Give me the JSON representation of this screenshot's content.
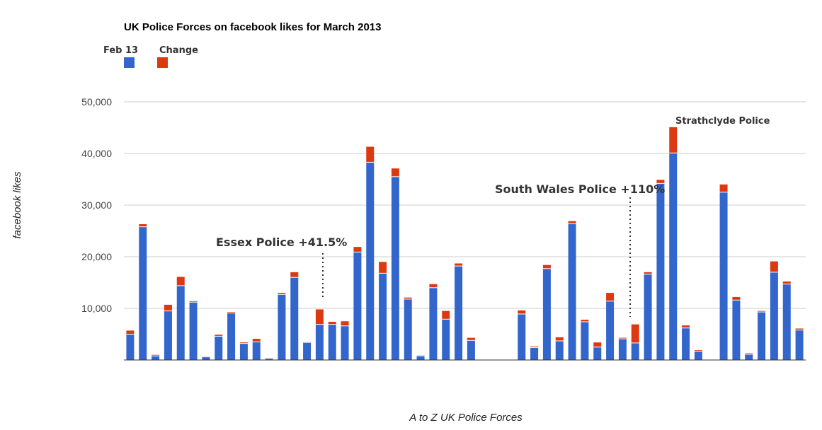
{
  "colors": {
    "base": "#3366cc",
    "change": "#dc3912",
    "grid": "#cccccc",
    "text": "#333333"
  },
  "chart_data": {
    "type": "bar",
    "stacked": true,
    "title": "UK Police Forces on facebook likes for March 2013",
    "xlabel": "A to Z UK Police Forces",
    "ylabel": "facebook likes",
    "ylim": [
      0,
      50000
    ],
    "yticks": [
      "10,000",
      "20,000",
      "30,000",
      "40,000",
      "50,000"
    ],
    "ytick_values": [
      10000,
      20000,
      30000,
      40000,
      50000
    ],
    "legend_position": "top-left",
    "grid": true,
    "series": [
      {
        "name": "Feb 13",
        "values": [
          5000,
          25800,
          800,
          9500,
          14400,
          11200,
          600,
          4600,
          9100,
          3200,
          3500,
          300,
          12700,
          16000,
          3400,
          6900,
          6900,
          6600,
          20900,
          38300,
          16800,
          35500,
          11800,
          800,
          14000,
          7900,
          18200,
          3800,
          null,
          null,
          null,
          8900,
          2400,
          17700,
          3700,
          26400,
          7400,
          2500,
          11400,
          4100,
          3300,
          16600,
          34200,
          40100,
          6200,
          1700,
          null,
          32500,
          11600,
          1100,
          9300,
          17000,
          14700,
          5800
        ]
      },
      {
        "name": "Change",
        "values": [
          700,
          500,
          200,
          1200,
          1700,
          200,
          100,
          300,
          200,
          200,
          600,
          100,
          300,
          1000,
          100,
          2900,
          500,
          900,
          1000,
          3000,
          2200,
          1600,
          300,
          100,
          700,
          1600,
          500,
          500,
          null,
          null,
          null,
          700,
          200,
          700,
          700,
          500,
          400,
          900,
          1600,
          200,
          3600,
          400,
          700,
          5000,
          500,
          200,
          null,
          1500,
          600,
          200,
          200,
          2100,
          500,
          300
        ]
      }
    ],
    "annotations": [
      {
        "text": "Essex Police +41.5%",
        "index": 15
      },
      {
        "text": "South Wales Police +110%",
        "index": 40
      },
      {
        "text": "Strathclyde Police",
        "index": 43
      }
    ]
  }
}
